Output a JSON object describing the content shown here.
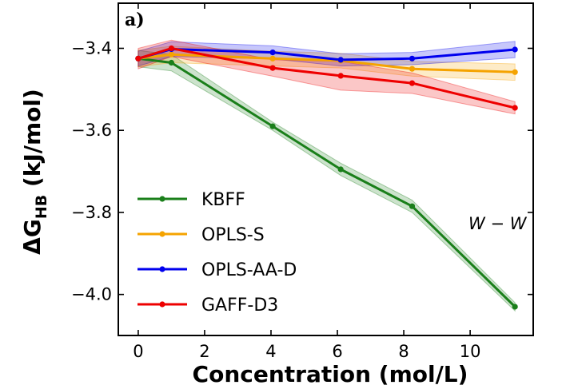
{
  "chart_data": {
    "type": "line",
    "panel_label": "a)",
    "xlabel": "Concentration (mol/L)",
    "ylabel_main": "ΔG",
    "ylabel_sub": "HB",
    "ylabel_unit": " (kJ/mol)",
    "xlim": [
      -0.6,
      11.9
    ],
    "ylim": [
      -4.1,
      -3.29
    ],
    "x_ticks": [
      0,
      2,
      4,
      6,
      8,
      10
    ],
    "x_tick_labels": [
      "0",
      "2",
      "4",
      "6",
      "8",
      "10"
    ],
    "y_ticks": [
      -3.4,
      -3.6,
      -3.8,
      -4.0
    ],
    "y_tick_labels": [
      "−3.4",
      "−3.6",
      "−3.8",
      "−4.0"
    ],
    "annotation": "W − W",
    "series": [
      {
        "name": "KBFF",
        "color": "#1a7f1a",
        "x": [
          0,
          1,
          4.05,
          6.1,
          8.25,
          11.35
        ],
        "y": [
          -3.425,
          -3.435,
          -3.59,
          -3.695,
          -3.785,
          -4.03
        ],
        "err": [
          0.02,
          0.02,
          0.01,
          0.015,
          0.015,
          0.01
        ]
      },
      {
        "name": "OPLS-S",
        "color": "#f5a300",
        "x": [
          0,
          1,
          4.05,
          6.1,
          8.25,
          11.35
        ],
        "y": [
          -3.425,
          -3.415,
          -3.425,
          -3.43,
          -3.45,
          -3.458
        ],
        "err": [
          0.02,
          0.02,
          0.018,
          0.018,
          0.018,
          0.02
        ]
      },
      {
        "name": "OPLS-AA-D",
        "color": "#0000ee",
        "x": [
          0,
          1,
          4.05,
          6.1,
          8.25,
          11.35
        ],
        "y": [
          -3.425,
          -3.402,
          -3.41,
          -3.428,
          -3.425,
          -3.403
        ],
        "err": [
          0.018,
          0.018,
          0.016,
          0.015,
          0.015,
          0.02
        ]
      },
      {
        "name": "GAFF-D3",
        "color": "#ee0000",
        "x": [
          0,
          1,
          4.05,
          6.1,
          8.25,
          11.35
        ],
        "y": [
          -3.425,
          -3.4,
          -3.448,
          -3.467,
          -3.485,
          -3.545
        ],
        "err": [
          0.025,
          0.02,
          0.02,
          0.035,
          0.025,
          0.015
        ]
      }
    ]
  }
}
